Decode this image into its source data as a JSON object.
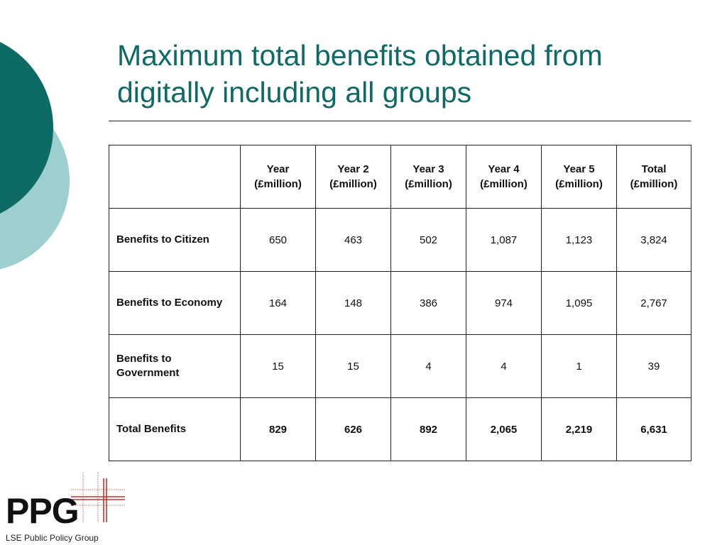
{
  "slide": {
    "title_line1": "Maximum total benefits obtained from",
    "title_line2": "digitally including all groups"
  },
  "table": {
    "corner": "",
    "headers": [
      {
        "line1": "Year",
        "line2": "(£million)"
      },
      {
        "line1": "Year 2",
        "line2": "(£million)"
      },
      {
        "line1": "Year 3",
        "line2": "(£million)"
      },
      {
        "line1": "Year 4",
        "line2": "(£million)"
      },
      {
        "line1": "Year 5",
        "line2": "(£million)"
      },
      {
        "line1": "Total",
        "line2": "(£million)"
      }
    ],
    "rows": [
      {
        "label": "Benefits to Citizen",
        "values": [
          "650",
          "463",
          "502",
          "1,087",
          "1,123",
          "3,824"
        ]
      },
      {
        "label": "Benefits to Economy",
        "values": [
          "164",
          "148",
          "386",
          "974",
          "1,095",
          "2,767"
        ]
      },
      {
        "label": "Benefits to Government",
        "values": [
          "15",
          "15",
          "4",
          "4",
          "1",
          "39"
        ]
      },
      {
        "label": "Total Benefits",
        "values": [
          "829",
          "626",
          "892",
          "2,065",
          "2,219",
          "6,631"
        ]
      }
    ]
  },
  "logo": {
    "mark": "PPG",
    "subtitle": "LSE Public Policy Group"
  },
  "colors": {
    "title": "#0d6a64",
    "circle_dark": "#0d6a64",
    "circle_light": "#9ecfd0",
    "logo_cross": "#c0392b"
  }
}
